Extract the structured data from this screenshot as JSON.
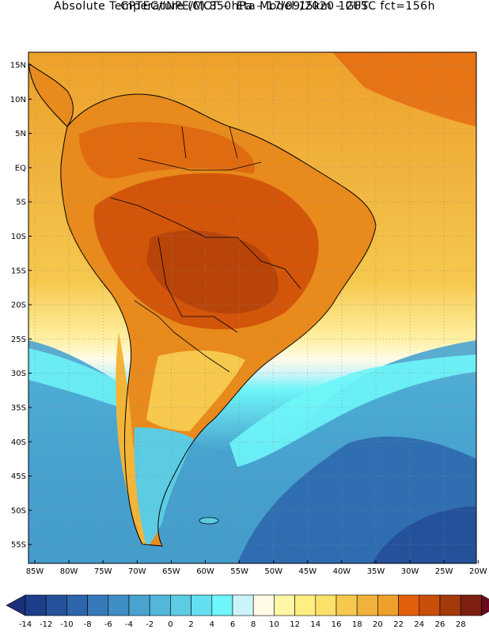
{
  "header": {
    "line1": "CPTEC/INPE/MCT –  Eta Model 15km – GFS",
    "line2": "Absolute Temperature (C) 850hPa – 17/09/2020 12UTC fct=156h"
  },
  "map": {
    "lat_labels": [
      "15N",
      "10N",
      "5N",
      "EQ",
      "5S",
      "10S",
      "15S",
      "20S",
      "25S",
      "30S",
      "35S",
      "40S",
      "45S",
      "50S",
      "55S"
    ],
    "lon_labels": [
      "85W",
      "80W",
      "75W",
      "70W",
      "65W",
      "60W",
      "55W",
      "50W",
      "45W",
      "40W",
      "35W",
      "30W",
      "25W",
      "20W"
    ],
    "units": "C"
  },
  "legend": {
    "labels": [
      "-14",
      "-12",
      "-10",
      "-8",
      "-6",
      "-4",
      "-2",
      "0",
      "2",
      "4",
      "6",
      "8",
      "10",
      "12",
      "14",
      "16",
      "18",
      "20",
      "22",
      "24",
      "26",
      "28"
    ],
    "colors": [
      "#1d3f8a",
      "#24519a",
      "#2c65ab",
      "#3779b8",
      "#3f8ec5",
      "#48a3cf",
      "#52b7db",
      "#5ccce3",
      "#63dff0",
      "#6ef6f8",
      "#caf4f9",
      "#fffbe6",
      "#fff7a6",
      "#ffee80",
      "#fbe06a",
      "#f6c84e",
      "#f0b23c",
      "#eea12a",
      "#e35f0c",
      "#c94e0a",
      "#a33a0a",
      "#7d2010"
    ],
    "low_color": "#1b2f7a",
    "high_color": "#6a0820"
  }
}
